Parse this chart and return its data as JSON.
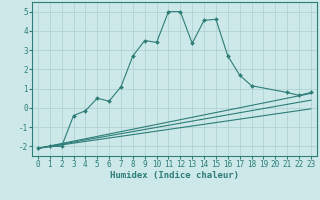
{
  "xlabel": "Humidex (Indice chaleur)",
  "x_values": [
    0,
    1,
    2,
    3,
    4,
    5,
    6,
    7,
    8,
    9,
    10,
    11,
    12,
    13,
    14,
    15,
    16,
    17,
    18,
    19,
    20,
    21,
    22,
    23
  ],
  "line1_y": [
    -2.1,
    -2.0,
    -2.0,
    -0.4,
    -0.15,
    0.5,
    0.35,
    1.1,
    2.7,
    3.5,
    3.4,
    5.0,
    5.0,
    3.35,
    4.55,
    4.6,
    2.7,
    1.7,
    1.15,
    null,
    null,
    0.8,
    0.65,
    0.8
  ],
  "line2_x": [
    0,
    23
  ],
  "line2_y": [
    -2.1,
    0.75
  ],
  "line3_x": [
    0,
    23
  ],
  "line3_y": [
    -2.1,
    0.4
  ],
  "line4_x": [
    0,
    23
  ],
  "line4_y": [
    -2.1,
    -0.05
  ],
  "color": "#2d7d78",
  "bg_color": "#cce8e8",
  "grid_color": "#aacfcf",
  "ylim": [
    -2.5,
    5.5
  ],
  "xlim": [
    -0.5,
    23.5
  ],
  "yticks": [
    -2,
    -1,
    0,
    1,
    2,
    3,
    4,
    5
  ],
  "xticks": [
    0,
    1,
    2,
    3,
    4,
    5,
    6,
    7,
    8,
    9,
    10,
    11,
    12,
    13,
    14,
    15,
    16,
    17,
    18,
    19,
    20,
    21,
    22,
    23
  ],
  "tick_fontsize": 5.5,
  "xlabel_fontsize": 6.5
}
